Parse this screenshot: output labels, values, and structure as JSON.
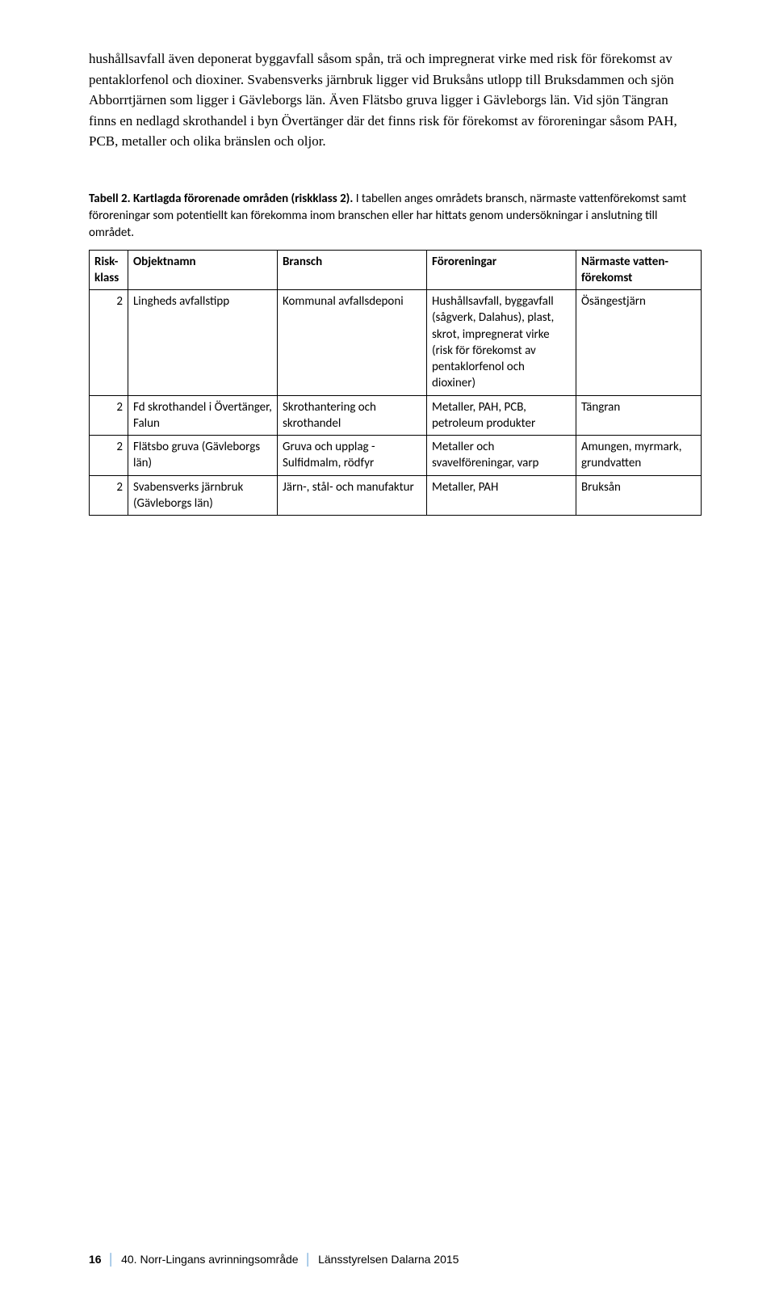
{
  "intro": "hushållsavfall även deponerat byggavfall såsom spån, trä och impregnerat virke med risk för förekomst av pentaklorfenol och dioxiner. Svabensverks järnbruk ligger vid Bruksåns utlopp till Bruksdammen och sjön Abborrtjärnen som ligger i Gävleborgs län. Även Flätsbo gruva ligger i Gävleborgs län. Vid sjön Tängran finns en nedlagd skrothandel i byn Övertänger där det finns risk för förekomst av föroreningar såsom PAH, PCB, metaller och olika bränslen och oljor.",
  "caption_bold": "Tabell 2. Kartlagda förorenade områden (riskklass 2).",
  "caption_rest": " I tabellen anges områdets bransch, närmaste vattenförekomst samt föroreningar som potentiellt kan förekomma inom branschen eller har hittats genom undersökningar i anslutning till området.",
  "headers": {
    "c0a": "Risk-",
    "c0b": "klass",
    "c1": "Objektnamn",
    "c2": "Bransch",
    "c3": "Föroreningar",
    "c4a": "Närmaste vatten-",
    "c4b": "förekomst"
  },
  "rows": [
    {
      "risk": "2",
      "objekt": "Lingheds avfallstipp",
      "bransch": "Kommunal avfallsdeponi",
      "foro": "Hushållsavfall, byggavfall (sågverk, Dalahus), plast, skrot, impregnerat virke (risk för förekomst av pentaklorfenol och dioxiner)",
      "vatten": "Ösängestjärn"
    },
    {
      "risk": "2",
      "objekt": "Fd skrothandel i Övertänger, Falun",
      "bransch": "Skrothantering och skrothandel",
      "foro": "Metaller, PAH, PCB, petroleum produkter",
      "vatten": "Tängran"
    },
    {
      "risk": "2",
      "objekt": "Flätsbo gruva (Gävleborgs län)",
      "bransch": "Gruva och upplag - Sulfidmalm, rödfyr",
      "foro": "Metaller och svavelföreningar, varp",
      "vatten": "Amungen, myrmark, grundvatten"
    },
    {
      "risk": "2",
      "objekt": "Svabensverks järnbruk (Gävleborgs län)",
      "bransch": "Järn-, stål- och manufaktur",
      "foro": "Metaller, PAH",
      "vatten": "Bruksån"
    }
  ],
  "footer": {
    "page": "16",
    "title": "40. Norr-Lingans avrinningsområde",
    "source": "Länsstyrelsen Dalarna 2015"
  }
}
